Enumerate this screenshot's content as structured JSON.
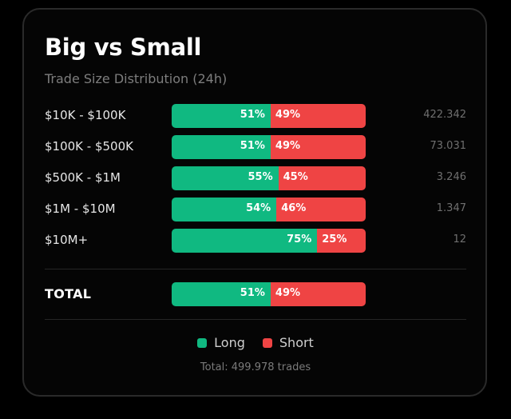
{
  "card": {
    "title": "Big vs Small",
    "subtitle": "Trade Size Distribution (24h)"
  },
  "rows": [
    {
      "label": "$10K - $100K",
      "long": 51,
      "short": 49,
      "long_text": "51%",
      "short_text": "49%",
      "count": "422.342"
    },
    {
      "label": "$100K - $500K",
      "long": 51,
      "short": 49,
      "long_text": "51%",
      "short_text": "49%",
      "count": "73.031"
    },
    {
      "label": "$500K - $1M",
      "long": 55,
      "short": 45,
      "long_text": "55%",
      "short_text": "45%",
      "count": "3.246"
    },
    {
      "label": "$1M - $10M",
      "long": 54,
      "short": 46,
      "long_text": "54%",
      "short_text": "46%",
      "count": "1.347"
    },
    {
      "label": "$10M+",
      "long": 75,
      "short": 25,
      "long_text": "75%",
      "short_text": "25%",
      "count": "12"
    }
  ],
  "total": {
    "label": "TOTAL",
    "long": 51,
    "short": 49,
    "long_text": "51%",
    "short_text": "49%"
  },
  "legend": {
    "long_label": "Long",
    "short_label": "Short",
    "long_color": "#10b981",
    "short_color": "#ef4444"
  },
  "footer": {
    "text": "Total: 499.978 trades"
  }
}
